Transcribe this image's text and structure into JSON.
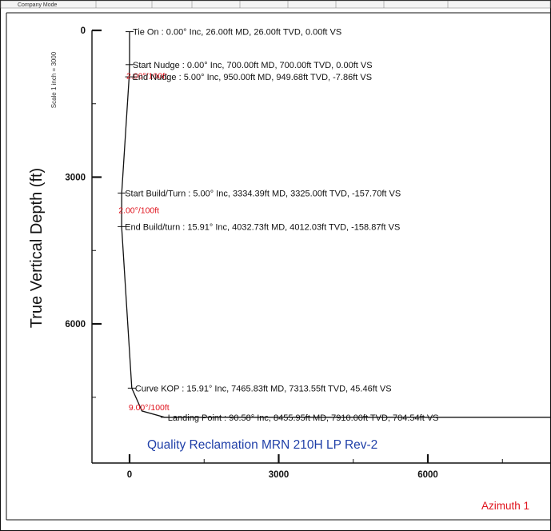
{
  "header_fragment": "Company Mode",
  "scale_note": "Scale 1 inch = 3000",
  "chart_data": {
    "type": "line",
    "title": "Quality Reclamation MRN 210H LP Rev-2",
    "xlabel": "",
    "ylabel": "True Vertical Depth (ft)",
    "x_axis_caption_partial": "Azimuth 1",
    "xlim": [
      -1400,
      10300
    ],
    "ylim": [
      -700,
      9700
    ],
    "y_inverted": true,
    "x_ticks": [
      {
        "value": 0,
        "label": "0"
      },
      {
        "value": 3000,
        "label": "3000"
      },
      {
        "value": 6000,
        "label": "6000"
      }
    ],
    "y_ticks": [
      {
        "value": 0,
        "label": "0"
      },
      {
        "value": 3000,
        "label": "3000"
      },
      {
        "value": 6000,
        "label": "6000"
      }
    ],
    "grid": false,
    "series": [
      {
        "x": [
          0,
          0,
          -7.86,
          -157.7,
          -158.87,
          45.46,
          250,
          704.54,
          10300
        ],
        "y": [
          26,
          700,
          949.68,
          3325,
          4012.03,
          7313.55,
          7780,
          7910,
          7910
        ]
      }
    ],
    "annotations": [
      {
        "text": "Tie On : 0.00° Inc, 26.00ft MD, 26.00ft TVD, 0.00ft VS",
        "x": 0,
        "y": 26,
        "kind": "point"
      },
      {
        "text": "Start Nudge : 0.00° Inc, 700.00ft MD, 700.00ft TVD, 0.00ft VS",
        "x": 0,
        "y": 700,
        "kind": "point"
      },
      {
        "text": "2.00°/100ft",
        "x": 0,
        "y": 920,
        "kind": "rate"
      },
      {
        "text": "End Nudge : 5.00° Inc, 950.00ft MD, 949.68ft TVD, -7.86ft VS",
        "x": -7.86,
        "y": 949.68,
        "kind": "point"
      },
      {
        "text": "Start Build/Turn : 5.00° Inc, 3334.39ft MD, 3325.00ft TVD, -157.70ft VS",
        "x": -157.7,
        "y": 3325,
        "kind": "point"
      },
      {
        "text": "2.00°/100ft",
        "x": -157.7,
        "y": 3670,
        "kind": "rate"
      },
      {
        "text": "End Build/turn : 15.91° Inc, 4032.73ft MD, 4012.03ft TVD, -158.87ft VS",
        "x": -158.87,
        "y": 4012.03,
        "kind": "point"
      },
      {
        "text": "Curve KOP : 15.91° Inc, 7465.83ft MD, 7313.55ft TVD, 45.46ft VS",
        "x": 45.46,
        "y": 7313.55,
        "kind": "point"
      },
      {
        "text": "9.00°/100ft",
        "x": 45.46,
        "y": 7700,
        "kind": "rate"
      },
      {
        "text": "Landing Point : 90.58° Inc, 8455.95ft MD, 7910.00ft TVD, 704.54ft VS",
        "x": 704.54,
        "y": 7910,
        "kind": "point"
      }
    ]
  }
}
